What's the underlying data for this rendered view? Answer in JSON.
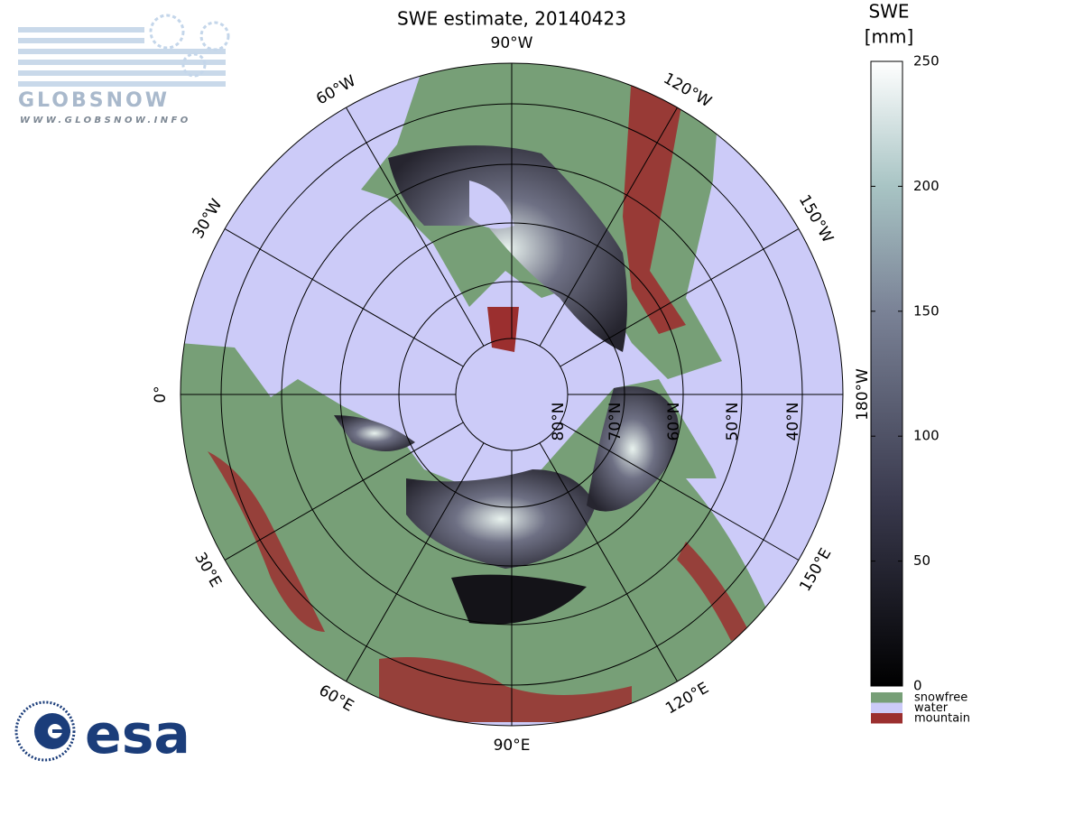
{
  "title": "SWE estimate, 20140423",
  "logos": {
    "globsnow": "GLOBSNOW",
    "globsnow_url": "WWW.GLOBSNOW.INFO",
    "esa": "esa"
  },
  "map": {
    "longitude_labels": [
      "90°W",
      "120°W",
      "150°W",
      "180°W",
      "150°E",
      "120°E",
      "90°E",
      "60°E",
      "30°E",
      "0°",
      "30°W",
      "60°W"
    ],
    "latitude_labels": [
      "80°N",
      "70°N",
      "60°N",
      "50°N",
      "40°N"
    ]
  },
  "colorbar": {
    "title": [
      "SWE",
      "[mm]"
    ],
    "range": [
      0,
      250
    ],
    "ticks": [
      0,
      50,
      100,
      150,
      200,
      250
    ]
  },
  "legend": [
    {
      "label": "snowfree",
      "color": "#779f77"
    },
    {
      "label": "water",
      "color": "#cccbf8"
    },
    {
      "label": "mountain",
      "color": "#9b2f2f"
    }
  ]
}
